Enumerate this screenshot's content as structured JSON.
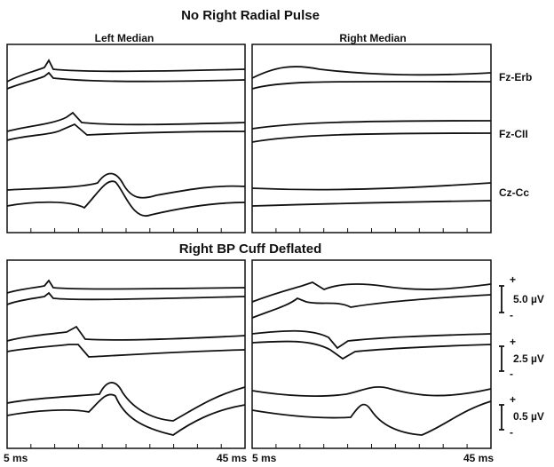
{
  "figure": {
    "top_title": "No Right Radial Pulse",
    "bottom_title": "Right BP Cuff Deflated",
    "column_titles": [
      "Left Median",
      "Right Median"
    ],
    "channels": [
      "Fz-Erb",
      "Fz-CII",
      "Cz-Cc"
    ],
    "scale_bars": [
      {
        "plus": "+",
        "label": "5.0 µV",
        "minus": "-"
      },
      {
        "plus": "+",
        "label": "2.5 µV",
        "minus": "-"
      },
      {
        "plus": "+",
        "label": "0.5 µV",
        "minus": "-"
      }
    ],
    "time_axis": [
      {
        "start": "5 ms",
        "end": "45 ms"
      },
      {
        "start": "5 ms",
        "end": "45 ms"
      }
    ]
  }
}
